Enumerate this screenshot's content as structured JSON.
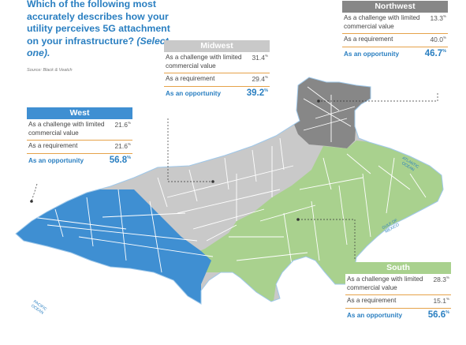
{
  "question": {
    "text": "Which of the following most accurately describes how your utility perceives 5G attachment on your infrastructure?",
    "select": "(Select one).",
    "source": "Source: Black & Veatch"
  },
  "colors": {
    "title": "#2a7fc1",
    "west": "#3f8fd2",
    "midwest": "#c9c9c9",
    "northwest": "#878787",
    "south": "#a9d18e",
    "divider": "#e6a24a"
  },
  "oceans": {
    "pacific": [
      "PACIFIC",
      "OCEAN"
    ],
    "atlantic": [
      "ATLANTIC",
      "OCEAN"
    ],
    "gulf": [
      "GULF OF",
      "MEXICO"
    ]
  },
  "chart_data": {
    "type": "table",
    "categories": [
      "As a challenge with limited commercial value",
      "As a requirement",
      "As an opportunity"
    ],
    "unit": "%",
    "regions": [
      {
        "name": "West",
        "values": [
          "21.6",
          "21.6",
          "56.8"
        ]
      },
      {
        "name": "Midwest",
        "values": [
          "31.4",
          "29.4",
          "39.2"
        ]
      },
      {
        "name": "Northwest",
        "values": [
          "13.3",
          "40.0",
          "46.7"
        ]
      },
      {
        "name": "South",
        "values": [
          "28.3",
          "15.1",
          "56.6"
        ]
      }
    ]
  }
}
